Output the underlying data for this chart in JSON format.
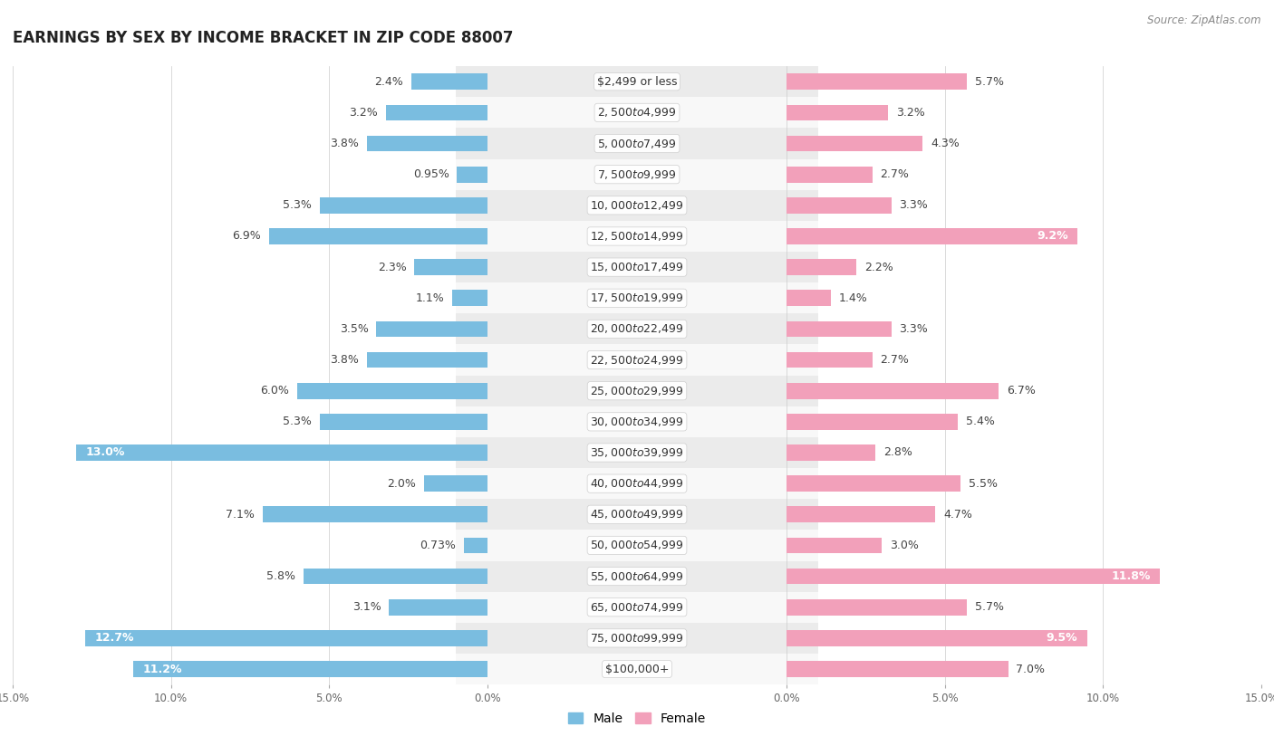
{
  "title": "EARNINGS BY SEX BY INCOME BRACKET IN ZIP CODE 88007",
  "source": "Source: ZipAtlas.com",
  "categories": [
    "$2,499 or less",
    "$2,500 to $4,999",
    "$5,000 to $7,499",
    "$7,500 to $9,999",
    "$10,000 to $12,499",
    "$12,500 to $14,999",
    "$15,000 to $17,499",
    "$17,500 to $19,999",
    "$20,000 to $22,499",
    "$22,500 to $24,999",
    "$25,000 to $29,999",
    "$30,000 to $34,999",
    "$35,000 to $39,999",
    "$40,000 to $44,999",
    "$45,000 to $49,999",
    "$50,000 to $54,999",
    "$55,000 to $64,999",
    "$65,000 to $74,999",
    "$75,000 to $99,999",
    "$100,000+"
  ],
  "male_values": [
    2.4,
    3.2,
    3.8,
    0.95,
    5.3,
    6.9,
    2.3,
    1.1,
    3.5,
    3.8,
    6.0,
    5.3,
    13.0,
    2.0,
    7.1,
    0.73,
    5.8,
    3.1,
    12.7,
    11.2
  ],
  "female_values": [
    5.7,
    3.2,
    4.3,
    2.7,
    3.3,
    9.2,
    2.2,
    1.4,
    3.3,
    2.7,
    6.7,
    5.4,
    2.8,
    5.5,
    4.7,
    3.0,
    11.8,
    5.7,
    9.5,
    7.0
  ],
  "male_color": "#7ABDE0",
  "female_color": "#F2A0BA",
  "bg_color": "#FFFFFF",
  "row_even_color": "#EBEBEB",
  "row_odd_color": "#F8F8F8",
  "axis_max": 15.0,
  "bar_height": 0.52,
  "label_fontsize": 9.0,
  "title_fontsize": 12,
  "male_highlight_threshold": 10.0,
  "female_highlight_threshold": 9.0
}
